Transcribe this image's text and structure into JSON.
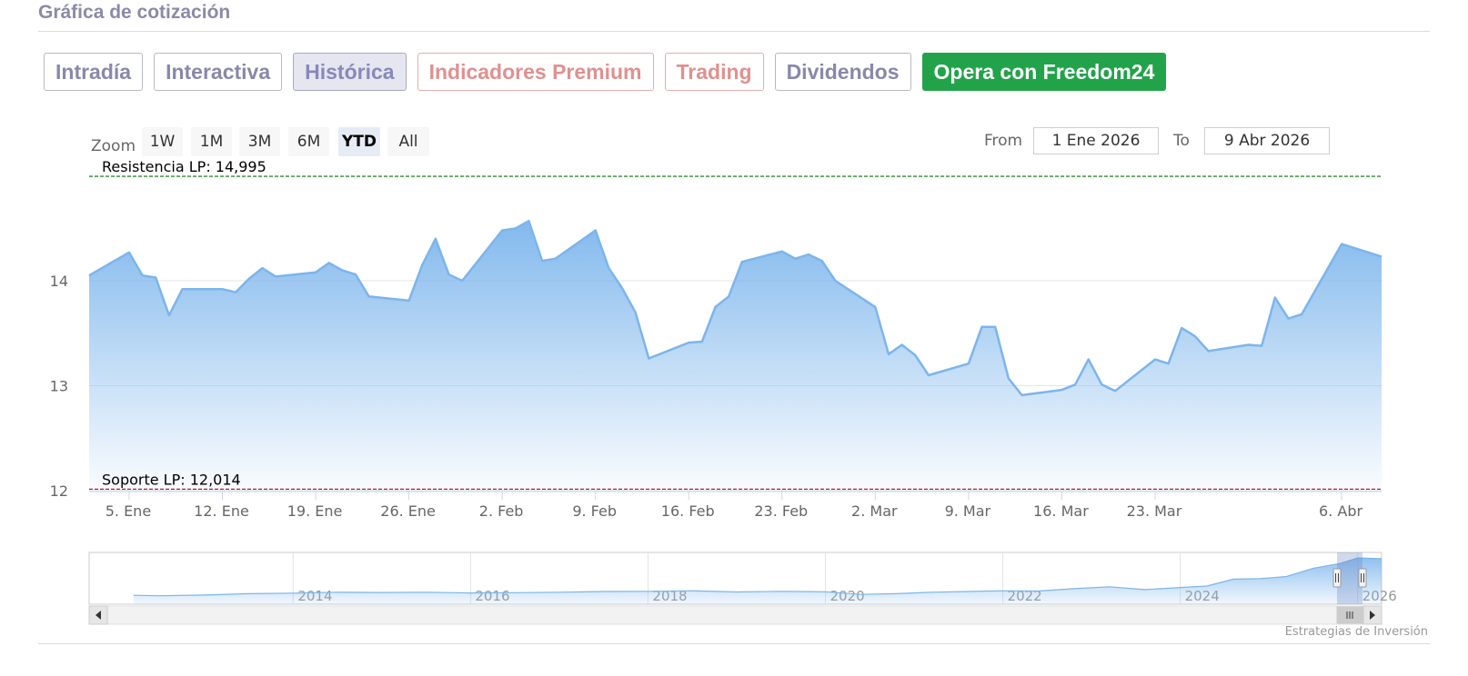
{
  "section_title": "Gráfica de cotización",
  "tabs": [
    {
      "label": "Intradía",
      "style": "normal"
    },
    {
      "label": "Interactiva",
      "style": "normal"
    },
    {
      "label": "Histórica",
      "style": "active"
    },
    {
      "label": "Indicadores Premium",
      "style": "premium"
    },
    {
      "label": "Trading",
      "style": "premium"
    },
    {
      "label": "Dividendos",
      "style": "normal"
    },
    {
      "label": "Opera con Freedom24",
      "style": "cta"
    }
  ],
  "range_selector": {
    "zoom_label": "Zoom",
    "buttons": [
      "1W",
      "1M",
      "3M",
      "6M",
      "YTD",
      "All"
    ],
    "selected": "YTD",
    "from_label": "From",
    "from_value": "1 Ene 2026",
    "to_label": "To",
    "to_value": "9 Abr 2026"
  },
  "credit": "Estrategias de Inversión",
  "colors": {
    "line": "#7cb5ec",
    "area_top": "#7cb5ec",
    "resistance": "#2e8b2e",
    "support": "#b22222",
    "cta": "#22a34a"
  },
  "chart_data": {
    "type": "area",
    "ylim": [
      11.9,
      15.05
    ],
    "y_ticks": [
      12,
      13,
      14
    ],
    "x_ticks": [
      {
        "label": "5. Ene",
        "date": "2026-01-05"
      },
      {
        "label": "12. Ene",
        "date": "2026-01-12"
      },
      {
        "label": "19. Ene",
        "date": "2026-01-19"
      },
      {
        "label": "26. Ene",
        "date": "2026-01-26"
      },
      {
        "label": "2. Feb",
        "date": "2026-02-02"
      },
      {
        "label": "9. Feb",
        "date": "2026-02-09"
      },
      {
        "label": "16. Feb",
        "date": "2026-02-16"
      },
      {
        "label": "23. Feb",
        "date": "2026-02-23"
      },
      {
        "label": "2. Mar",
        "date": "2026-03-02"
      },
      {
        "label": "9. Mar",
        "date": "2026-03-09"
      },
      {
        "label": "16. Mar",
        "date": "2026-03-16"
      },
      {
        "label": "23. Mar",
        "date": "2026-03-23"
      },
      {
        "label": "6. Abr",
        "date": "2026-04-06"
      }
    ],
    "plot_lines": [
      {
        "label": "Resistencia LP: 14,995",
        "value": 14.995,
        "kind": "resistance"
      },
      {
        "label": "Soporte LP: 12,014",
        "value": 12.014,
        "kind": "support"
      }
    ],
    "series": [
      {
        "points": [
          [
            "2026-01-02",
            14.05
          ],
          [
            "2026-01-05",
            14.27
          ],
          [
            "2026-01-06",
            14.05
          ],
          [
            "2026-01-07",
            14.03
          ],
          [
            "2026-01-08",
            13.67
          ],
          [
            "2026-01-09",
            13.92
          ],
          [
            "2026-01-12",
            13.92
          ],
          [
            "2026-01-13",
            13.89
          ],
          [
            "2026-01-14",
            14.02
          ],
          [
            "2026-01-15",
            14.12
          ],
          [
            "2026-01-16",
            14.04
          ],
          [
            "2026-01-19",
            14.08
          ],
          [
            "2026-01-20",
            14.17
          ],
          [
            "2026-01-21",
            14.1
          ],
          [
            "2026-01-22",
            14.06
          ],
          [
            "2026-01-23",
            13.85
          ],
          [
            "2026-01-26",
            13.81
          ],
          [
            "2026-01-27",
            14.15
          ],
          [
            "2026-01-28",
            14.4
          ],
          [
            "2026-01-29",
            14.06
          ],
          [
            "2026-01-30",
            14.0
          ],
          [
            "2026-02-02",
            14.48
          ],
          [
            "2026-02-03",
            14.5
          ],
          [
            "2026-02-04",
            14.57
          ],
          [
            "2026-02-05",
            14.19
          ],
          [
            "2026-02-06",
            14.21
          ],
          [
            "2026-02-09",
            14.48
          ],
          [
            "2026-02-10",
            14.12
          ],
          [
            "2026-02-11",
            13.93
          ],
          [
            "2026-02-12",
            13.7
          ],
          [
            "2026-02-13",
            13.26
          ],
          [
            "2026-02-16",
            13.41
          ],
          [
            "2026-02-17",
            13.42
          ],
          [
            "2026-02-18",
            13.75
          ],
          [
            "2026-02-19",
            13.85
          ],
          [
            "2026-02-20",
            14.18
          ],
          [
            "2026-02-23",
            14.28
          ],
          [
            "2026-02-24",
            14.21
          ],
          [
            "2026-02-25",
            14.25
          ],
          [
            "2026-02-26",
            14.19
          ],
          [
            "2026-02-27",
            14.0
          ],
          [
            "2026-03-02",
            13.75
          ],
          [
            "2026-03-03",
            13.3
          ],
          [
            "2026-03-04",
            13.39
          ],
          [
            "2026-03-05",
            13.29
          ],
          [
            "2026-03-06",
            13.1
          ],
          [
            "2026-03-09",
            13.21
          ],
          [
            "2026-03-10",
            13.56
          ],
          [
            "2026-03-11",
            13.56
          ],
          [
            "2026-03-12",
            13.07
          ],
          [
            "2026-03-13",
            12.91
          ],
          [
            "2026-03-16",
            12.96
          ],
          [
            "2026-03-17",
            13.01
          ],
          [
            "2026-03-18",
            13.25
          ],
          [
            "2026-03-19",
            13.01
          ],
          [
            "2026-03-20",
            12.95
          ],
          [
            "2026-03-23",
            13.25
          ],
          [
            "2026-03-24",
            13.21
          ],
          [
            "2026-03-25",
            13.55
          ],
          [
            "2026-03-26",
            13.47
          ],
          [
            "2026-03-27",
            13.33
          ],
          [
            "2026-03-30",
            13.39
          ],
          [
            "2026-03-31",
            13.38
          ],
          [
            "2026-04-01",
            13.84
          ],
          [
            "2026-04-02",
            13.64
          ],
          [
            "2026-04-03",
            13.68
          ],
          [
            "2026-04-06",
            14.35
          ],
          [
            "2026-04-09",
            14.23
          ]
        ]
      }
    ],
    "navigator": {
      "x_ticks": [
        "2014",
        "2016",
        "2018",
        "2020",
        "2022",
        "2024",
        "2026"
      ],
      "series": [
        [
          2012.2,
          2.6
        ],
        [
          2012.5,
          2.4
        ],
        [
          2013.0,
          2.7
        ],
        [
          2013.5,
          3.3
        ],
        [
          2014.0,
          3.5
        ],
        [
          2014.5,
          3.9
        ],
        [
          2015.0,
          3.8
        ],
        [
          2015.5,
          3.9
        ],
        [
          2016.0,
          3.6
        ],
        [
          2016.5,
          3.7
        ],
        [
          2017.0,
          3.9
        ],
        [
          2017.5,
          4.2
        ],
        [
          2018.0,
          4.3
        ],
        [
          2018.5,
          4.5
        ],
        [
          2019.0,
          4.0
        ],
        [
          2019.5,
          4.3
        ],
        [
          2020.0,
          4.1
        ],
        [
          2020.4,
          3.0
        ],
        [
          2020.8,
          3.3
        ],
        [
          2021.2,
          3.9
        ],
        [
          2021.6,
          4.2
        ],
        [
          2022.0,
          4.5
        ],
        [
          2022.4,
          4.4
        ],
        [
          2022.8,
          5.4
        ],
        [
          2023.2,
          6.2
        ],
        [
          2023.6,
          5.0
        ],
        [
          2024.0,
          5.9
        ],
        [
          2024.3,
          6.5
        ],
        [
          2024.6,
          9.4
        ],
        [
          2024.9,
          9.6
        ],
        [
          2025.2,
          10.5
        ],
        [
          2025.5,
          14.0
        ],
        [
          2025.8,
          16.0
        ],
        [
          2026.0,
          18.3
        ],
        [
          2026.27,
          18.0
        ]
      ],
      "window": [
        "2026-01-01",
        "2026-04-09"
      ]
    }
  }
}
